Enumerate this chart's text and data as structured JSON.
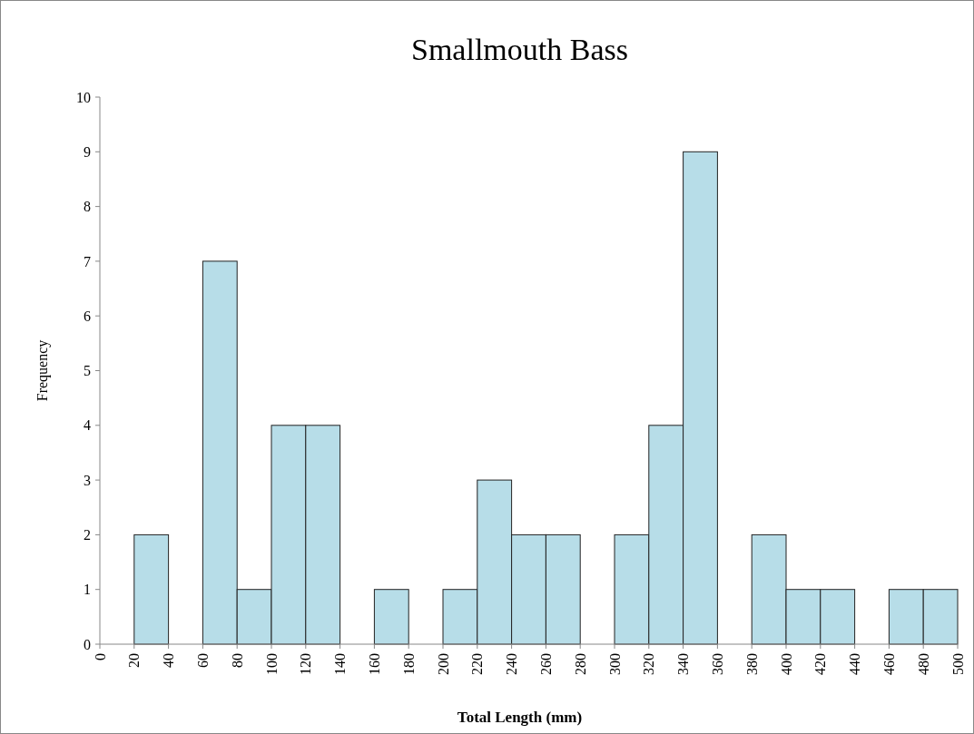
{
  "chart_data": {
    "type": "histogram",
    "title": "Smallmouth Bass",
    "xlabel": "Total Length (mm)",
    "ylabel": "Frequency",
    "bins": [
      0,
      20,
      40,
      60,
      80,
      100,
      120,
      140,
      160,
      180,
      200,
      220,
      240,
      260,
      280,
      300,
      320,
      340,
      360,
      380,
      400,
      420,
      440,
      460,
      480,
      500
    ],
    "values": [
      0,
      2,
      0,
      7,
      1,
      4,
      4,
      0,
      1,
      0,
      1,
      3,
      2,
      2,
      0,
      2,
      4,
      9,
      0,
      2,
      1,
      1,
      0,
      1,
      1
    ],
    "color": "#b7dde8",
    "xlim": [
      0,
      500
    ],
    "xticks": [
      0,
      20,
      40,
      60,
      80,
      100,
      120,
      140,
      160,
      180,
      200,
      220,
      240,
      260,
      280,
      300,
      320,
      340,
      360,
      380,
      400,
      420,
      440,
      460,
      480,
      500
    ],
    "ylim": [
      0,
      10
    ],
    "yticks": [
      0,
      1,
      2,
      3,
      4,
      5,
      6,
      7,
      8,
      9,
      10
    ],
    "grid": false
  }
}
